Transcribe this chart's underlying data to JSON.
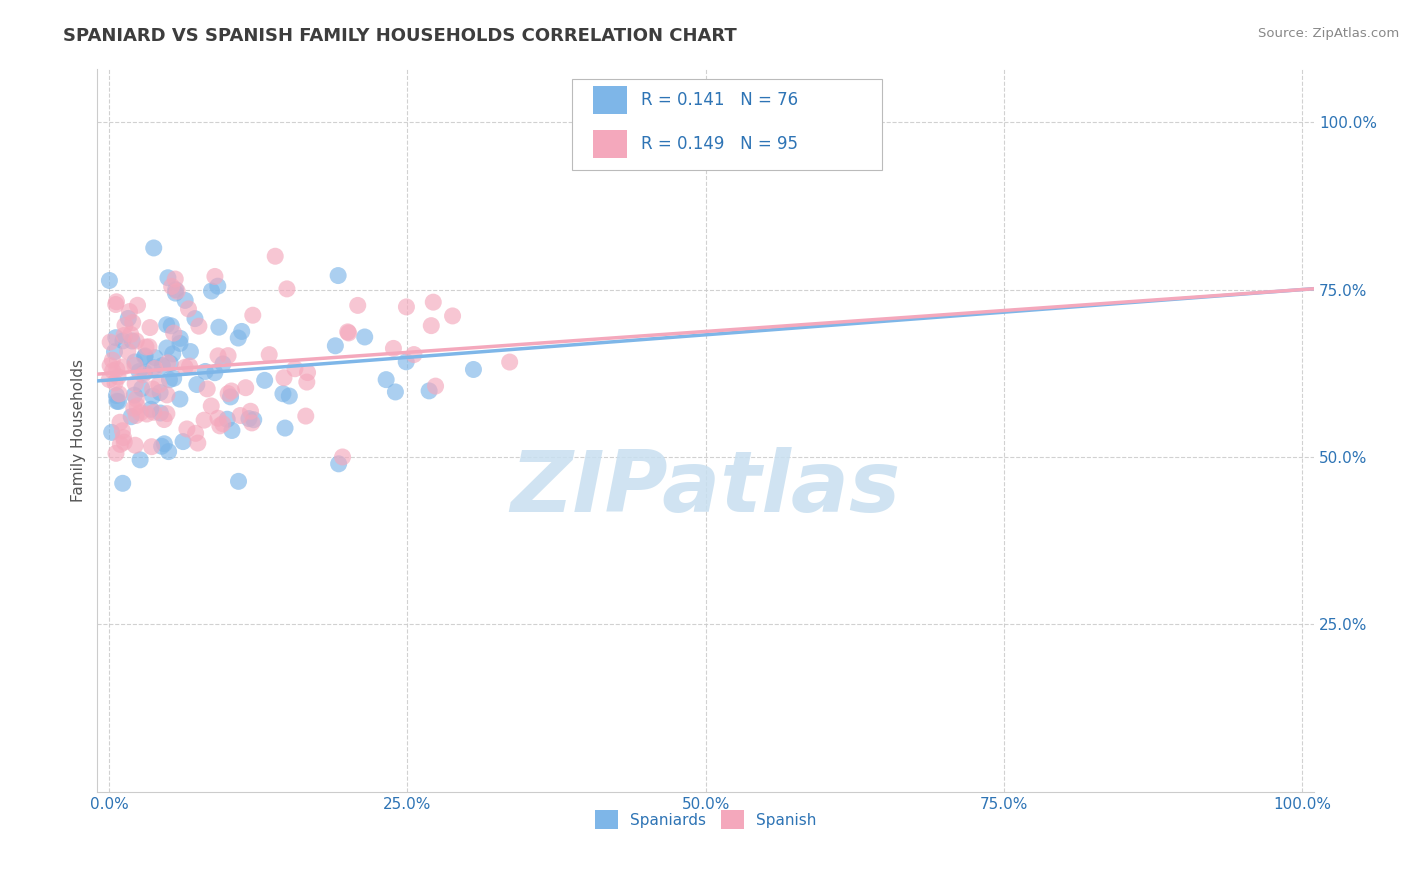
{
  "title": "SPANIARD VS SPANISH FAMILY HOUSEHOLDS CORRELATION CHART",
  "source": "Source: ZipAtlas.com",
  "ylabel": "Family Households",
  "watermark": "ZIPatlas",
  "legend_r_blue": "0.141",
  "legend_n_blue": "76",
  "legend_r_pink": "0.149",
  "legend_n_pink": "95",
  "blue_color": "#7EB6E8",
  "pink_color": "#F4A8BC",
  "title_color": "#3d3d3d",
  "axis_label_color": "#2E74B5",
  "source_color": "#888888",
  "watermark_color": "#c8dff0",
  "legend_text_color": "#2E74B5",
  "xlim": [
    -0.01,
    1.01
  ],
  "ylim": [
    0.0,
    1.08
  ],
  "blue_intercept": 0.615,
  "blue_slope": 0.135,
  "pink_intercept": 0.625,
  "pink_slope": 0.125
}
